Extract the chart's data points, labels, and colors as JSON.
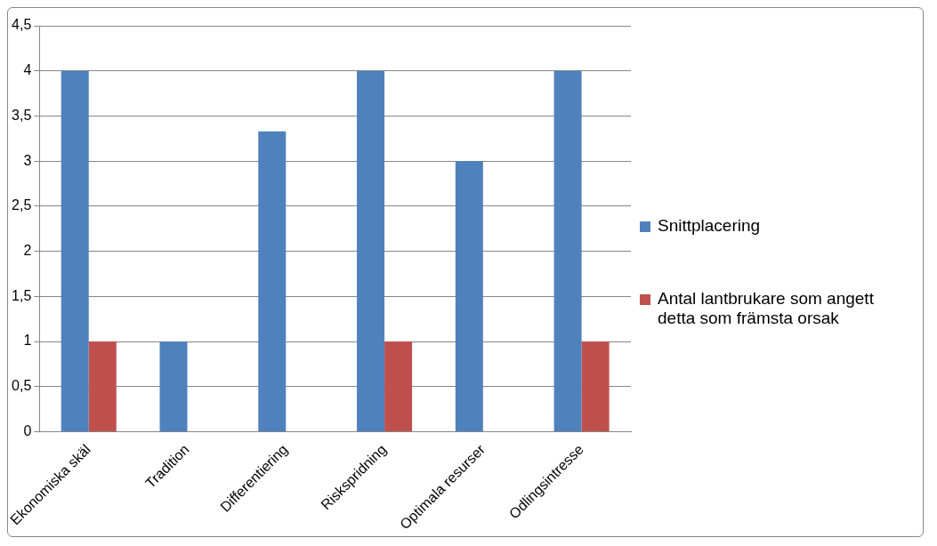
{
  "chart_data": {
    "type": "bar",
    "categories": [
      "Ekonomiska skäl",
      "Tradition",
      "Differentiering",
      "Riskspridning",
      "Optimala resurser",
      "Odlingsintresse"
    ],
    "series": [
      {
        "name": "Snittplacering",
        "color": "#4f81bd",
        "values": [
          4,
          1,
          3.33,
          4,
          3,
          4
        ]
      },
      {
        "name": "Antal lantbrukare som angett detta som främsta orsak",
        "color": "#c0504d",
        "values": [
          1,
          0,
          0,
          1,
          0,
          1
        ]
      }
    ],
    "ylim": [
      0,
      4.5
    ],
    "yticks": [
      0,
      {
        "value": 0.5,
        "label": "0,5"
      },
      1,
      {
        "value": 1.5,
        "label": "1,5"
      },
      2,
      {
        "value": 2.5,
        "label": "2,5"
      },
      3,
      {
        "value": 3.5,
        "label": "3,5"
      },
      4,
      {
        "value": 4.5,
        "label": "4,5"
      }
    ],
    "grid": "y",
    "legend": "right"
  }
}
